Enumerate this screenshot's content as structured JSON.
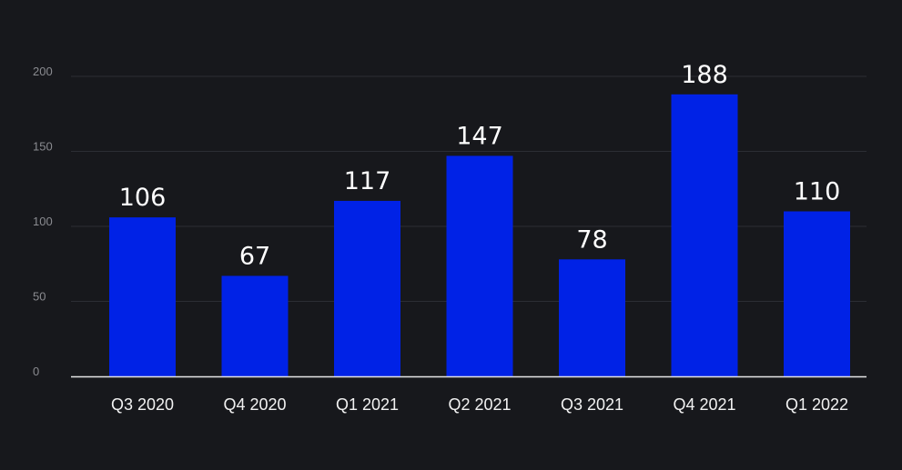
{
  "colors": {
    "background": "#17181c",
    "bar": "#0022e6",
    "grid": "#2c2e34",
    "axis_line": "#e6e6e6",
    "tick_label": "#8a8b90",
    "category_label": "#f2f2f2",
    "data_label": "#ffffff"
  },
  "chart_data": {
    "type": "bar",
    "title": "",
    "xlabel": "",
    "ylabel": "",
    "categories": [
      "Q3 2020",
      "Q4 2020",
      "Q1 2021",
      "Q2 2021",
      "Q3 2021",
      "Q4 2021",
      "Q1 2022"
    ],
    "values": [
      106,
      67,
      117,
      147,
      78,
      188,
      110
    ],
    "data_labels": [
      "106",
      "67",
      "117",
      "147",
      "78",
      "188",
      "110"
    ],
    "ylim": [
      0,
      200
    ],
    "yticks": [
      0,
      50,
      100,
      150,
      200
    ],
    "ytick_labels": [
      "0",
      "50",
      "100",
      "150",
      "200"
    ],
    "grid": true,
    "legend": "none"
  }
}
